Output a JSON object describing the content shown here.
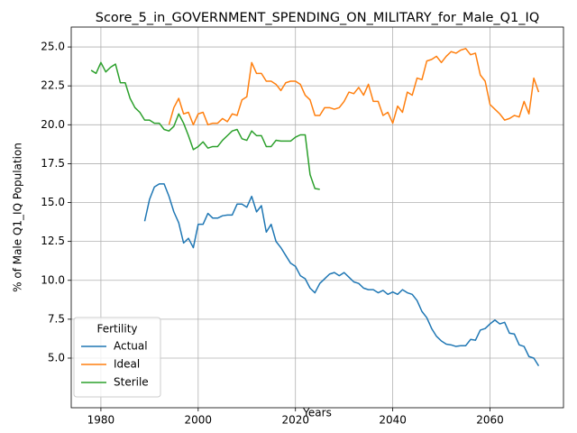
{
  "chart_data": {
    "type": "line",
    "title": "Score_5_in_GOVERNMENT_SPENDING_ON_MILITARY_for_Male_Q1_IQ",
    "xlabel": "Years",
    "ylabel": "% of Male Q1_IQ Population",
    "legend_title": "Fertility",
    "legend": "lower left",
    "grid": true,
    "x": [
      1978,
      1979,
      1980,
      1981,
      1982,
      1983,
      1984,
      1985,
      1986,
      1987,
      1988,
      1989,
      1990,
      1991,
      1992,
      1993,
      1994,
      1995,
      1996,
      1997,
      1998,
      1999,
      2000,
      2001,
      2002,
      2003,
      2004,
      2005,
      2006,
      2007,
      2008,
      2009,
      2010,
      2011,
      2012,
      2013,
      2014,
      2015,
      2016,
      2017,
      2018,
      2019,
      2020,
      2021,
      2022,
      2023,
      2024,
      2025,
      2026,
      2027,
      2028,
      2029,
      2030,
      2031,
      2032,
      2033,
      2034,
      2035,
      2036,
      2037,
      2038,
      2039,
      2040,
      2041,
      2042,
      2043,
      2044,
      2045,
      2046,
      2047,
      2048,
      2049,
      2050,
      2051,
      2052,
      2053,
      2054,
      2055,
      2056,
      2057,
      2058,
      2059,
      2060,
      2061,
      2062,
      2063,
      2064,
      2065,
      2066,
      2067,
      2068,
      2069,
      2070
    ],
    "series": [
      {
        "name": "Actual",
        "color": "#1f77b4",
        "values": [
          null,
          null,
          null,
          null,
          null,
          null,
          null,
          null,
          null,
          null,
          null,
          13.8,
          15.2,
          16.0,
          16.2,
          16.2,
          15.4,
          14.4,
          13.7,
          12.4,
          12.7,
          12.1,
          13.6,
          13.6,
          14.3,
          14.0,
          14.0,
          14.15,
          14.2,
          14.2,
          14.9,
          14.9,
          14.7,
          15.4,
          14.4,
          14.8,
          13.1,
          13.6,
          12.5,
          12.1,
          11.6,
          11.1,
          10.9,
          10.3,
          10.1,
          9.5,
          9.2,
          9.8,
          10.1,
          10.4,
          10.5,
          10.3,
          10.5,
          10.2,
          9.9,
          9.8,
          9.5,
          9.4,
          9.4,
          9.2,
          9.35,
          9.1,
          9.25,
          9.1,
          9.4,
          9.2,
          9.1,
          8.7,
          8.0,
          7.6,
          6.9,
          6.4,
          6.1,
          5.9,
          5.85,
          5.75,
          5.8,
          5.8,
          6.2,
          6.15,
          6.8,
          6.9,
          7.2,
          7.45,
          7.2,
          7.3,
          6.6,
          6.55,
          5.85,
          5.75,
          5.1,
          5.0,
          4.5
        ]
      },
      {
        "name": "Ideal",
        "color": "#ff7f0e",
        "values": [
          null,
          null,
          null,
          null,
          null,
          null,
          null,
          null,
          null,
          null,
          null,
          null,
          null,
          null,
          null,
          null,
          20.0,
          21.1,
          21.7,
          20.7,
          20.8,
          20.0,
          20.7,
          20.8,
          20.0,
          20.1,
          20.1,
          20.4,
          20.2,
          20.7,
          20.6,
          21.6,
          21.8,
          24.0,
          23.3,
          23.3,
          22.8,
          22.8,
          22.6,
          22.2,
          22.7,
          22.8,
          22.8,
          22.6,
          21.9,
          21.6,
          20.6,
          20.6,
          21.1,
          21.1,
          21.0,
          21.1,
          21.5,
          22.1,
          22.0,
          22.4,
          21.9,
          22.6,
          21.5,
          21.5,
          20.6,
          20.8,
          20.1,
          21.2,
          20.8,
          22.1,
          21.9,
          23.0,
          22.9,
          24.1,
          24.2,
          24.4,
          24.0,
          24.4,
          24.7,
          24.6,
          24.8,
          24.9,
          24.5,
          24.6,
          23.2,
          22.8,
          21.3,
          21.0,
          20.7,
          20.3,
          20.4,
          20.6,
          20.5,
          21.5,
          20.7,
          23.0,
          22.1
        ]
      },
      {
        "name": "Sterile",
        "color": "#2ca02c",
        "values": [
          23.5,
          23.3,
          24.0,
          23.4,
          23.7,
          23.9,
          22.7,
          22.7,
          21.7,
          21.1,
          20.8,
          20.3,
          20.3,
          20.1,
          20.1,
          19.7,
          19.6,
          19.9,
          20.7,
          20.1,
          19.3,
          18.4,
          18.6,
          18.9,
          18.5,
          18.6,
          18.6,
          19.0,
          19.3,
          19.6,
          19.7,
          19.1,
          19.0,
          19.6,
          19.3,
          19.3,
          18.6,
          18.6,
          19.0,
          18.95,
          18.95,
          18.95,
          19.2,
          19.35,
          19.35,
          16.8,
          15.9,
          15.85,
          null,
          null,
          null,
          null,
          null,
          null,
          null,
          null,
          null,
          null,
          null,
          null,
          null,
          null,
          null,
          null,
          null,
          null,
          null,
          null,
          null,
          null,
          null,
          null,
          null,
          null,
          null,
          null,
          null,
          null,
          null,
          null,
          null,
          null,
          null,
          null,
          null,
          null,
          null,
          null,
          null,
          null,
          null,
          null,
          null
        ]
      }
    ],
    "xlim": [
      1973.9,
      2075.1
    ],
    "xticks": [
      1980,
      2000,
      2020,
      2040,
      2060
    ],
    "ylim": [
      1.81,
      26.28
    ],
    "yticks": [
      {
        "value": 5,
        "label": "5.0"
      },
      7.5,
      {
        "value": 10,
        "label": "10.0"
      },
      12.5,
      {
        "value": 15,
        "label": "15.0"
      },
      17.5,
      {
        "value": 20,
        "label": "20.0"
      },
      22.5,
      {
        "value": 25,
        "label": "25.0"
      }
    ]
  }
}
